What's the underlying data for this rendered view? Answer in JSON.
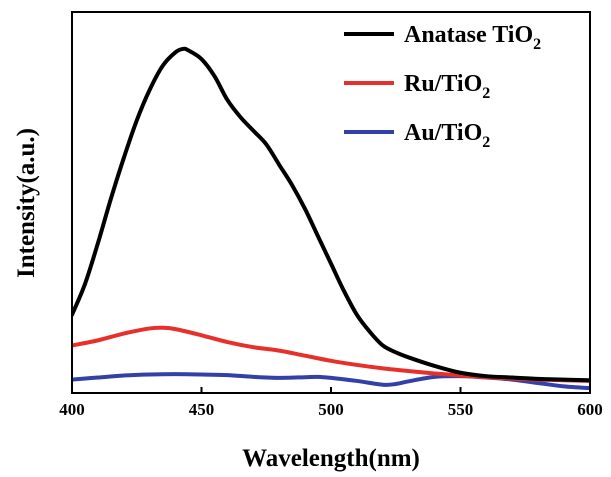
{
  "chart_data": {
    "type": "line",
    "xlabel": "Wavelength(nm)",
    "ylabel": "Intensity(a.u.)",
    "xlim": [
      400,
      600
    ],
    "ylim": [
      0,
      1
    ],
    "x_ticks": [
      400,
      450,
      500,
      550,
      600
    ],
    "y_ticks_shown": false,
    "grid": false,
    "legend_position": "top-right",
    "series": [
      {
        "name": "Anatase TiO2",
        "name_main": "Anatase TiO",
        "name_sub": "2",
        "color": "#000000",
        "x": [
          400,
          405,
          410,
          415,
          420,
          425,
          430,
          435,
          440,
          443,
          445,
          450,
          455,
          460,
          465,
          470,
          475,
          480,
          485,
          490,
          495,
          500,
          505,
          510,
          515,
          520,
          525,
          530,
          540,
          550,
          560,
          570,
          580,
          590,
          600
        ],
        "values": [
          0.2,
          0.29,
          0.41,
          0.54,
          0.66,
          0.77,
          0.86,
          0.93,
          0.97,
          0.98,
          0.975,
          0.95,
          0.9,
          0.83,
          0.78,
          0.74,
          0.7,
          0.64,
          0.58,
          0.51,
          0.43,
          0.35,
          0.27,
          0.2,
          0.15,
          0.11,
          0.09,
          0.075,
          0.05,
          0.03,
          0.02,
          0.016,
          0.012,
          0.01,
          0.008
        ]
      },
      {
        "name": "Ru/TiO2",
        "name_main": "Ru/TiO",
        "name_sub": "2",
        "color": "#e8302b",
        "x": [
          400,
          410,
          420,
          430,
          435,
          440,
          450,
          460,
          470,
          480,
          490,
          500,
          510,
          520,
          530,
          540,
          550,
          560,
          570,
          580,
          590,
          600
        ],
        "values": [
          0.11,
          0.125,
          0.145,
          0.16,
          0.162,
          0.158,
          0.14,
          0.12,
          0.105,
          0.095,
          0.08,
          0.065,
          0.053,
          0.043,
          0.035,
          0.028,
          0.022,
          0.017,
          0.013,
          0.01,
          0.008,
          0.006
        ]
      },
      {
        "name": "Au/TiO2",
        "name_main": "Au/TiO",
        "name_sub": "2",
        "color": "#3340a8",
        "x": [
          400,
          410,
          420,
          430,
          440,
          450,
          460,
          470,
          480,
          490,
          495,
          500,
          510,
          520,
          525,
          530,
          540,
          550,
          560,
          570,
          580,
          590,
          600
        ],
        "values": [
          0.01,
          0.016,
          0.022,
          0.025,
          0.026,
          0.025,
          0.023,
          0.018,
          0.015,
          0.017,
          0.018,
          0.015,
          0.006,
          -0.005,
          -0.003,
          0.005,
          0.018,
          0.02,
          0.016,
          0.01,
          0.0,
          -0.01,
          -0.015
        ]
      }
    ]
  }
}
